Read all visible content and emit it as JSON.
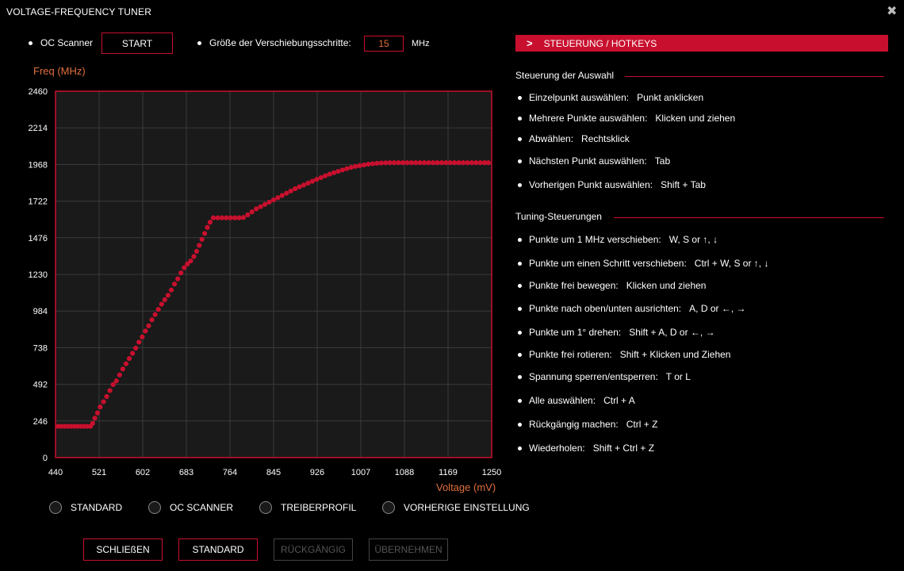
{
  "window": {
    "title": "VOLTAGE-FREQUENCY TUNER",
    "close_glyph": "✖"
  },
  "top": {
    "oc_scanner_label": "OC Scanner",
    "start_button": "START",
    "step_label": "Größe der Verschiebungsschritte:",
    "step_value": "15",
    "step_unit": "MHz"
  },
  "chart_data": {
    "type": "scatter",
    "ylabel": "Freq (MHz)",
    "xlabel": "Voltage (mV)",
    "xlim": [
      440,
      1250
    ],
    "ylim": [
      0,
      2460
    ],
    "x_ticks": [
      "440",
      "521",
      "602",
      "683",
      "764",
      "845",
      "926",
      "1007",
      "1088",
      "1169",
      "1250"
    ],
    "y_ticks": [
      "0",
      "246",
      "492",
      "738",
      "984",
      "1230",
      "1476",
      "1722",
      "1968",
      "2214",
      "2460"
    ],
    "grid": true,
    "colors": {
      "points": "#c8102e",
      "frame": "#c8102e",
      "plot_bg": "#1a1a1a",
      "grid": "#3a3a3a"
    },
    "points": [
      [
        445,
        210
      ],
      [
        451,
        210
      ],
      [
        457,
        210
      ],
      [
        463,
        210
      ],
      [
        469,
        210
      ],
      [
        475,
        210
      ],
      [
        481,
        210
      ],
      [
        487,
        210
      ],
      [
        493,
        210
      ],
      [
        499,
        210
      ],
      [
        505,
        210
      ],
      [
        509,
        230
      ],
      [
        513,
        265
      ],
      [
        518,
        300
      ],
      [
        523,
        340
      ],
      [
        529,
        375
      ],
      [
        535,
        410
      ],
      [
        541,
        450
      ],
      [
        547,
        490
      ],
      [
        553,
        515
      ],
      [
        559,
        555
      ],
      [
        565,
        595
      ],
      [
        571,
        630
      ],
      [
        577,
        665
      ],
      [
        583,
        700
      ],
      [
        589,
        735
      ],
      [
        595,
        775
      ],
      [
        601,
        810
      ],
      [
        607,
        850
      ],
      [
        613,
        885
      ],
      [
        619,
        925
      ],
      [
        625,
        960
      ],
      [
        631,
        995
      ],
      [
        637,
        1030
      ],
      [
        643,
        1060
      ],
      [
        649,
        1090
      ],
      [
        655,
        1125
      ],
      [
        661,
        1165
      ],
      [
        667,
        1200
      ],
      [
        673,
        1240
      ],
      [
        679,
        1275
      ],
      [
        685,
        1300
      ],
      [
        691,
        1320
      ],
      [
        697,
        1350
      ],
      [
        702,
        1385
      ],
      [
        707,
        1425
      ],
      [
        712,
        1465
      ],
      [
        717,
        1505
      ],
      [
        722,
        1545
      ],
      [
        727,
        1580
      ],
      [
        733,
        1610
      ],
      [
        741,
        1610
      ],
      [
        749,
        1610
      ],
      [
        757,
        1610
      ],
      [
        765,
        1610
      ],
      [
        773,
        1610
      ],
      [
        781,
        1610
      ],
      [
        789,
        1612
      ],
      [
        797,
        1630
      ],
      [
        805,
        1650
      ],
      [
        813,
        1670
      ],
      [
        821,
        1685
      ],
      [
        829,
        1700
      ],
      [
        837,
        1715
      ],
      [
        845,
        1730
      ],
      [
        853,
        1745
      ],
      [
        861,
        1760
      ],
      [
        869,
        1775
      ],
      [
        877,
        1790
      ],
      [
        885,
        1805
      ],
      [
        893,
        1818
      ],
      [
        901,
        1830
      ],
      [
        909,
        1843
      ],
      [
        917,
        1855
      ],
      [
        925,
        1868
      ],
      [
        933,
        1880
      ],
      [
        941,
        1892
      ],
      [
        949,
        1903
      ],
      [
        957,
        1913
      ],
      [
        965,
        1922
      ],
      [
        973,
        1931
      ],
      [
        981,
        1940
      ],
      [
        989,
        1948
      ],
      [
        997,
        1955
      ],
      [
        1005,
        1960
      ],
      [
        1013,
        1965
      ],
      [
        1021,
        1970
      ],
      [
        1029,
        1973
      ],
      [
        1037,
        1976
      ],
      [
        1045,
        1978
      ],
      [
        1053,
        1979
      ],
      [
        1061,
        1980
      ],
      [
        1069,
        1980
      ],
      [
        1077,
        1980
      ],
      [
        1085,
        1980
      ],
      [
        1093,
        1980
      ],
      [
        1101,
        1980
      ],
      [
        1109,
        1980
      ],
      [
        1117,
        1980
      ],
      [
        1125,
        1980
      ],
      [
        1133,
        1980
      ],
      [
        1141,
        1980
      ],
      [
        1149,
        1980
      ],
      [
        1157,
        1980
      ],
      [
        1165,
        1980
      ],
      [
        1173,
        1980
      ],
      [
        1181,
        1980
      ],
      [
        1189,
        1980
      ],
      [
        1197,
        1980
      ],
      [
        1205,
        1980
      ],
      [
        1213,
        1980
      ],
      [
        1221,
        1980
      ],
      [
        1229,
        1980
      ],
      [
        1237,
        1980
      ],
      [
        1244,
        1980
      ]
    ]
  },
  "radios": [
    "STANDARD",
    "OC SCANNER",
    "TREIBERPROFIL",
    "VORHERIGE EINSTELLUNG"
  ],
  "buttons": {
    "close": "SCHLIEßEN",
    "standard": "STANDARD",
    "undo": "RÜCKGÄNGIG",
    "apply": "ÜBERNEHMEN"
  },
  "right": {
    "header_chevron": ">",
    "header": "STEUERUNG / HOTKEYS",
    "sections": [
      {
        "title": "Steuerung der Auswahl",
        "items": [
          {
            "label": "Einzelpunkt auswählen:",
            "key": "Punkt anklicken"
          },
          {
            "label": "Mehrere Punkte auswählen:",
            "key": "Klicken und ziehen"
          },
          {
            "label": "Abwählen:",
            "key": "Rechtsklick"
          },
          {
            "label": "Nächsten Punkt auswählen:",
            "key": "Tab"
          },
          {
            "label": "Vorherigen Punkt auswählen:",
            "key": "Shift + Tab"
          }
        ]
      },
      {
        "title": "Tuning-Steuerungen",
        "items": [
          {
            "label": "Punkte um 1 MHz verschieben:",
            "key": "W, S or ↑, ↓"
          },
          {
            "label": "Punkte um einen Schritt verschieben:",
            "key": "Ctrl + W, S or ↑, ↓"
          },
          {
            "label": "Punkte frei bewegen:",
            "key": "Klicken und ziehen"
          },
          {
            "label": "Punkte nach oben/unten ausrichten:",
            "key": "A, D or ←, →"
          },
          {
            "label": "Punkte um 1° drehen:",
            "key": "Shift + A, D or ←, →"
          },
          {
            "label": "Punkte frei rotieren:",
            "key": "Shift + Klicken und Ziehen"
          },
          {
            "label": "Spannung sperren/entsperren:",
            "key": "T or L"
          },
          {
            "label": "Alle auswählen:",
            "key": "Ctrl + A"
          },
          {
            "label": "Rückgängig machen:",
            "key": "Ctrl + Z"
          },
          {
            "label": "Wiederholen:",
            "key": "Shift + Ctrl + Z"
          }
        ]
      }
    ]
  }
}
